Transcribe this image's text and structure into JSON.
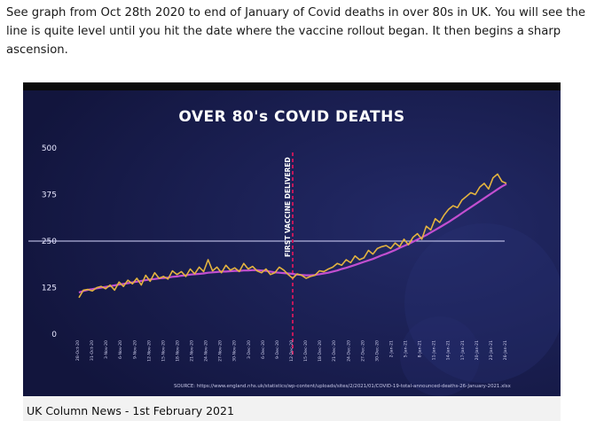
{
  "post": {
    "text": "See graph from Oct 28th 2020 to end of January of Covid deaths in over 80s in UK. You will see the line is quite level until you hit the date where the vaccine rollout began. It then begins a sharp ascension."
  },
  "caption": {
    "text": "UK Column News - 1st February 2021"
  },
  "colors": {
    "panel_background": "#161a4a",
    "daily_line": "#e3b33f",
    "average_line": "#c24fd0",
    "marker_line": "#c2185b",
    "reference_line": "#d8d8ff"
  },
  "chart_data": {
    "type": "line",
    "title": "OVER 80's COVID DEATHS",
    "xlabel": "",
    "ylabel": "",
    "ylim": [
      0,
      500
    ],
    "y_ticks": [
      0,
      125,
      250,
      375,
      500
    ],
    "reference_line_y": 250,
    "grid": false,
    "legend": "none",
    "source": "SOURCE: https://www.england.nhs.uk/statistics/wp-content/uploads/sites/2/2021/01/COVID-19-total-announced-deaths-26-January-2021.xlsx",
    "annotation": {
      "label": "FIRST VACCINE DELIVERED",
      "x": "7-Dec-20"
    },
    "x_tick_labels": [
      "28-Oct-20",
      "31-Oct-20",
      "3-Nov-20",
      "6-Nov-20",
      "9-Nov-20",
      "12-Nov-20",
      "15-Nov-20",
      "18-Nov-20",
      "21-Nov-20",
      "24-Nov-20",
      "27-Nov-20",
      "30-Nov-20",
      "3-Dec-20",
      "6-Dec-20",
      "9-Dec-20",
      "12-Dec-20",
      "15-Dec-20",
      "18-Dec-20",
      "21-Dec-20",
      "24-Dec-20",
      "27-Dec-20",
      "30-Dec-20",
      "2-Jan-21",
      "5-Jan-21",
      "8-Jan-21",
      "11-Jan-21",
      "14-Jan-21",
      "17-Jan-21",
      "20-Jan-21",
      "23-Jan-21",
      "26-Jan-21"
    ],
    "x_start": "28-Oct-20",
    "x_end": "26-Jan-21",
    "series": [
      {
        "values": [
          98,
          118,
          120,
          116,
          125,
          128,
          122,
          132,
          118,
          140,
          128,
          145,
          135,
          150,
          132,
          158,
          142,
          165,
          150,
          155,
          148,
          170,
          160,
          168,
          155,
          175,
          162,
          180,
          168,
          200,
          170,
          180,
          165,
          185,
          172,
          178,
          168,
          190,
          175,
          182,
          170,
          165,
          175,
          160,
          165,
          180,
          172,
          160,
          150,
          162,
          158,
          150,
          155,
          158,
          170,
          168,
          175,
          180,
          190,
          185,
          200,
          192,
          210,
          200,
          205,
          225,
          215,
          230,
          235,
          238,
          230,
          245,
          235,
          255,
          240,
          260,
          270,
          255,
          290,
          280,
          310,
          300,
          320,
          335,
          345,
          340,
          360,
          370,
          380,
          375,
          395,
          405,
          390,
          420,
          430,
          410,
          405
        ]
      },
      {
        "values": [
          112,
          116,
          119,
          121,
          123,
          125,
          127,
          129,
          131,
          133,
          135,
          137,
          139,
          141,
          143,
          145,
          147,
          148,
          150,
          151,
          152,
          154,
          155,
          157,
          158,
          160,
          161,
          162,
          163,
          165,
          166,
          167,
          168,
          168,
          169,
          170,
          170,
          171,
          171,
          172,
          172,
          171,
          170,
          168,
          166,
          165,
          164,
          163,
          162,
          160,
          159,
          158,
          158,
          159,
          161,
          163,
          165,
          168,
          171,
          175,
          178,
          182,
          186,
          190,
          194,
          198,
          202,
          207,
          212,
          216,
          221,
          226,
          232,
          237,
          242,
          248,
          254,
          260,
          266,
          273,
          280,
          287,
          294,
          301,
          309,
          317,
          325,
          333,
          341,
          349,
          357,
          365,
          373,
          381,
          389,
          397,
          403
        ]
      }
    ]
  }
}
